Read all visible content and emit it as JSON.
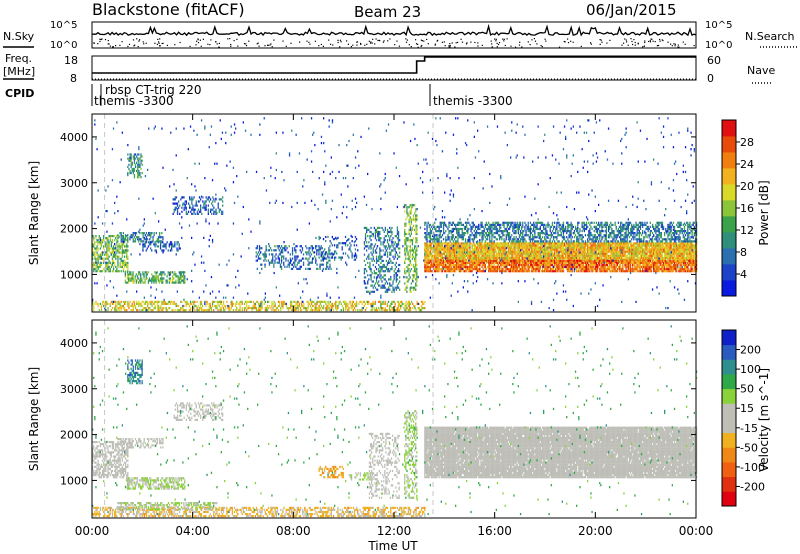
{
  "header": {
    "station": "Blackstone (fitACF)",
    "beam": "Beam 23",
    "date": "06/Jan/2015"
  },
  "side_labels": {
    "nsky": "N.Sky",
    "nsearch": "N.Search",
    "freq_line1": "Freq.",
    "freq_line2": "[MHz]",
    "nave": "Nave",
    "cpid": "CPID"
  },
  "noise_panel": {
    "tick_top": "10^5",
    "tick_bottom": "10^0",
    "tick_top_r": "10^5",
    "tick_bottom_r": "10^0"
  },
  "freq_panel": {
    "left_ticks": [
      "18",
      "8"
    ],
    "right_ticks": [
      "60",
      "0"
    ]
  },
  "cpid_labels": [
    {
      "text": "rbsp CT-trig 220",
      "hour": 0.6,
      "row": 0
    },
    {
      "text": "themis -3300",
      "hour": 0.1,
      "row": 1
    },
    {
      "text": "themis -3300",
      "hour": 13.55,
      "row": 1
    }
  ],
  "x_axis": {
    "label": "Time UT",
    "ticks": [
      "00:00",
      "04:00",
      "08:00",
      "12:00",
      "16:00",
      "20:00",
      "00:00"
    ],
    "range_hours": [
      0,
      24
    ]
  },
  "power_colorbar": {
    "label": "Power [dB]",
    "ticks": [
      "28",
      "24",
      "20",
      "16",
      "12",
      "8",
      "4"
    ],
    "colors": [
      "#0a1ae0",
      "#1c43c8",
      "#2a6fb0",
      "#2f8f7a",
      "#3aa24a",
      "#8cc43a",
      "#d9d92a",
      "#f2b11f",
      "#f07f10",
      "#e84a0a",
      "#e01010"
    ]
  },
  "velocity_colorbar": {
    "label": "Velocity [m s^-1]",
    "ticks": [
      "200",
      "100",
      "50",
      "15",
      "-15",
      "-50",
      "-100",
      "-200"
    ],
    "colors": [
      "#1020c8",
      "#2a5bc0",
      "#2f8f8f",
      "#2fa84a",
      "#8ad23a",
      "#bfbfb8",
      "#bfbfb8",
      "#f0b020",
      "#f08818",
      "#f06010",
      "#e03010",
      "#e00010"
    ]
  },
  "chart_data": {
    "type": "heatmap",
    "xlabel": "Time UT",
    "ylabel": "Slant Range [km]",
    "xlim_hours": [
      0,
      24
    ],
    "ylim": [
      180,
      4500
    ],
    "y_ticks": [
      1000,
      2000,
      3000,
      4000
    ],
    "power_scatter": [
      {
        "t0": 0.0,
        "t1": 1.4,
        "r0": 1050,
        "r1": 1850,
        "val": 14,
        "dens": 0.55
      },
      {
        "t0": 1.0,
        "t1": 2.8,
        "r0": 1700,
        "r1": 1900,
        "val": 8,
        "dens": 0.5
      },
      {
        "t0": 1.3,
        "t1": 3.7,
        "r0": 800,
        "r1": 1050,
        "val": 12,
        "dens": 0.6
      },
      {
        "t0": 1.4,
        "t1": 2.0,
        "r0": 3100,
        "r1": 3600,
        "val": 10,
        "dens": 0.5
      },
      {
        "t0": 3.2,
        "t1": 5.2,
        "r0": 2300,
        "r1": 2700,
        "val": 6,
        "dens": 0.35
      },
      {
        "t0": 2.0,
        "t1": 3.5,
        "r0": 1500,
        "r1": 1700,
        "val": 6,
        "dens": 0.35
      },
      {
        "t0": 0.0,
        "t1": 13.2,
        "r0": 200,
        "r1": 400,
        "val": 18,
        "dens": 0.5
      },
      {
        "t0": 6.5,
        "t1": 9.5,
        "r0": 1100,
        "r1": 1600,
        "val": 7,
        "dens": 0.3
      },
      {
        "t0": 9.0,
        "t1": 10.5,
        "r0": 1300,
        "r1": 1800,
        "val": 6,
        "dens": 0.25
      },
      {
        "t0": 10.8,
        "t1": 12.2,
        "r0": 600,
        "r1": 2000,
        "val": 8,
        "dens": 0.35
      },
      {
        "t0": 12.4,
        "t1": 12.9,
        "r0": 600,
        "r1": 2500,
        "val": 14,
        "dens": 0.45
      },
      {
        "t0": 13.2,
        "t1": 24.0,
        "r0": 1250,
        "r1": 1700,
        "val": 20,
        "dens": 0.95
      },
      {
        "t0": 13.2,
        "t1": 24.0,
        "r0": 1050,
        "r1": 1300,
        "val": 24,
        "dens": 0.85
      },
      {
        "t0": 13.2,
        "t1": 24.0,
        "r0": 1700,
        "r1": 2150,
        "val": 8,
        "dens": 0.55
      },
      {
        "t0": 0.0,
        "t1": 24.0,
        "r0": 200,
        "r1": 4400,
        "val": 4,
        "dens": 0.015
      }
    ],
    "velocity_scatter": [
      {
        "t0": 0.0,
        "t1": 1.4,
        "r0": 1050,
        "r1": 1850,
        "val": 0,
        "dens": 0.55
      },
      {
        "t0": 1.0,
        "t1": 2.8,
        "r0": 1700,
        "r1": 1900,
        "val": 0,
        "dens": 0.5
      },
      {
        "t0": 1.3,
        "t1": 3.7,
        "r0": 800,
        "r1": 1050,
        "val": 30,
        "dens": 0.6
      },
      {
        "t0": 1.4,
        "t1": 2.0,
        "r0": 3100,
        "r1": 3600,
        "val": 120,
        "dens": 0.5
      },
      {
        "t0": 3.2,
        "t1": 5.2,
        "r0": 2300,
        "r1": 2700,
        "val": 0,
        "dens": 0.35
      },
      {
        "t0": 0.0,
        "t1": 13.2,
        "r0": 200,
        "r1": 400,
        "val": -40,
        "dens": 0.5
      },
      {
        "t0": 1.0,
        "t1": 5.0,
        "r0": 350,
        "r1": 500,
        "val": 30,
        "dens": 0.5
      },
      {
        "t0": 9.0,
        "t1": 10.0,
        "r0": 1050,
        "r1": 1300,
        "val": -60,
        "dens": 0.4
      },
      {
        "t0": 10.2,
        "t1": 11.2,
        "r0": 1000,
        "r1": 1150,
        "val": 30,
        "dens": 0.4
      },
      {
        "t0": 11.0,
        "t1": 12.2,
        "r0": 600,
        "r1": 2000,
        "val": 0,
        "dens": 0.3
      },
      {
        "t0": 12.4,
        "t1": 12.9,
        "r0": 600,
        "r1": 2500,
        "val": 40,
        "dens": 0.45
      },
      {
        "t0": 13.2,
        "t1": 24.0,
        "r0": 1050,
        "r1": 2150,
        "val": 0,
        "dens": 0.95
      },
      {
        "t0": 0.0,
        "t1": 24.0,
        "r0": 200,
        "r1": 4400,
        "val": 80,
        "dens": 0.012
      }
    ],
    "nsky_level": 0.55,
    "freq_step_hour": 12.9
  }
}
